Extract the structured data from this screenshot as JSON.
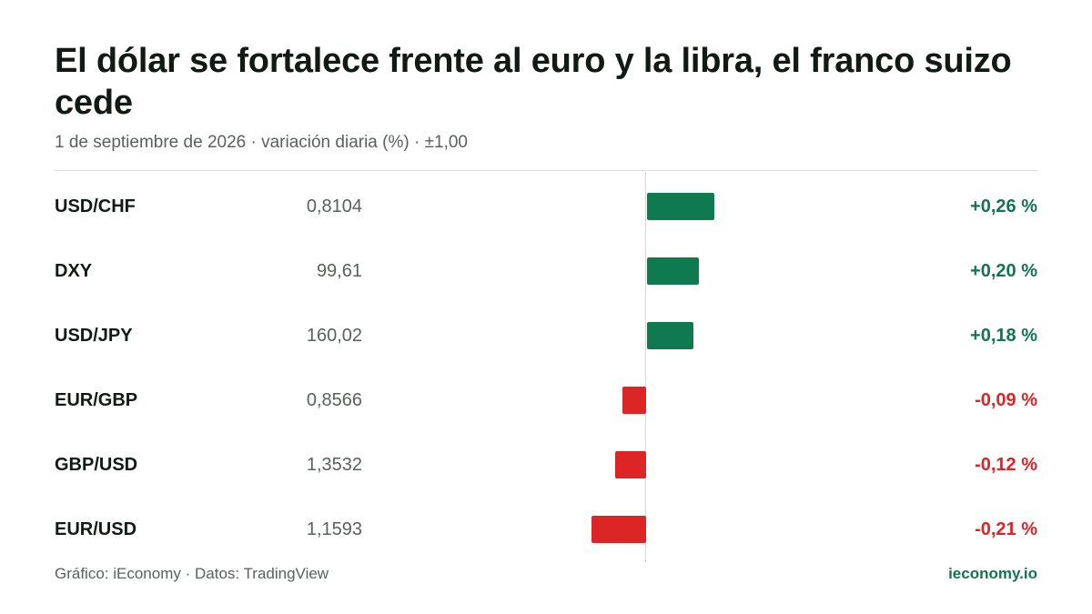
{
  "chart_data": {
    "type": "bar",
    "title": "El dólar se fortalece frente al euro y la libra, el franco suizo cede",
    "subtitle": "1 de septiembre de 2026 · variación diaria (%) · ±1,00",
    "xlim": [
      -1.0,
      1.0
    ],
    "colors": {
      "positive": "#0f7a4f",
      "negative": "#dc2626"
    },
    "rows": [
      {
        "pair": "USD/CHF",
        "rate": "0,8104",
        "change": 0.26,
        "change_label": "+0,26 %"
      },
      {
        "pair": "DXY",
        "rate": "99,61",
        "change": 0.2,
        "change_label": "+0,20 %"
      },
      {
        "pair": "USD/JPY",
        "rate": "160,02",
        "change": 0.18,
        "change_label": "+0,18 %"
      },
      {
        "pair": "EUR/GBP",
        "rate": "0,8566",
        "change": -0.09,
        "change_label": "-0,09 %"
      },
      {
        "pair": "GBP/USD",
        "rate": "1,3532",
        "change": -0.12,
        "change_label": "-0,12 %"
      },
      {
        "pair": "EUR/USD",
        "rate": "1,1593",
        "change": -0.21,
        "change_label": "-0,21 %"
      }
    ]
  },
  "footer": {
    "source": "Gráfico: iEconomy · Datos: TradingView",
    "brand": "ieconomy.io"
  }
}
